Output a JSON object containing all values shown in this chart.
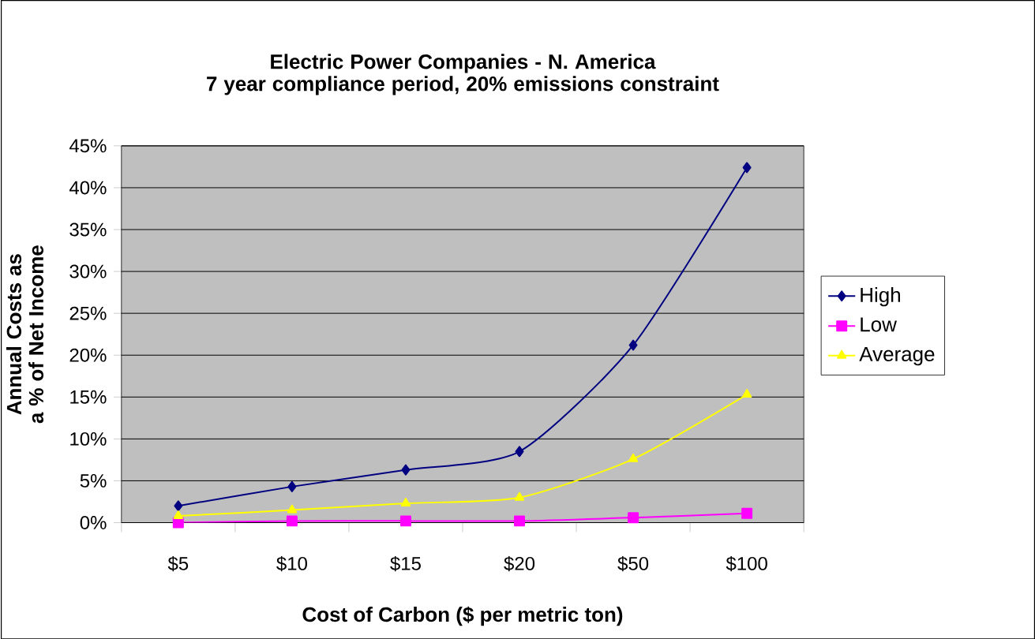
{
  "chart_data": {
    "type": "line",
    "title": "Electric Power Companies - N. America\n7 year compliance period, 20% emissions constraint",
    "xlabel": "Cost of Carbon ($ per metric ton)",
    "ylabel": "Annual Costs as a % of Net Income",
    "categories": [
      "$5",
      "$10",
      "$15",
      "$20",
      "$50",
      "$100"
    ],
    "series": [
      {
        "name": "High",
        "color": "#000080",
        "marker": "diamond",
        "values": [
          2.0,
          4.3,
          6.3,
          8.5,
          21.2,
          42.4
        ]
      },
      {
        "name": "Low",
        "color": "#ff00ff",
        "marker": "square",
        "values": [
          0.0,
          0.2,
          0.2,
          0.2,
          0.6,
          1.1
        ]
      },
      {
        "name": "Average",
        "color": "#ffff00",
        "marker": "triangle",
        "values": [
          0.8,
          1.5,
          2.3,
          3.0,
          7.6,
          15.3
        ]
      }
    ],
    "ylim": [
      0,
      45
    ],
    "yticks": [
      {
        "value": 0,
        "label": "0%"
      },
      {
        "value": 5,
        "label": "5%"
      },
      {
        "value": 10,
        "label": "10%"
      },
      {
        "value": 15,
        "label": "15%"
      },
      {
        "value": 20,
        "label": "20%"
      },
      {
        "value": 25,
        "label": "25%"
      },
      {
        "value": 30,
        "label": "30%"
      },
      {
        "value": 35,
        "label": "35%"
      },
      {
        "value": 40,
        "label": "40%"
      },
      {
        "value": 45,
        "label": "45%"
      }
    ],
    "grid": "y",
    "legend": "right"
  }
}
